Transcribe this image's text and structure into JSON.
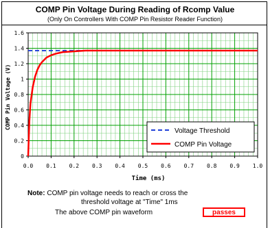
{
  "header": {
    "title": "COMP Pin Voltage During Reading of Rcomp Value",
    "subtitle": "(Only On Controllers With COMP Pin Resistor Reader Function)"
  },
  "chart_data": {
    "type": "line",
    "xlabel": "Time (ms)",
    "ylabel": "COMP Pin Voltage (V)",
    "xlim": [
      0,
      1.0
    ],
    "ylim": [
      0,
      1.6
    ],
    "x_ticks": [
      "0.0",
      "0.1",
      "0.2",
      "0.3",
      "0.4",
      "0.5",
      "0.6",
      "0.7",
      "0.8",
      "0.9",
      "1.0"
    ],
    "y_ticks": [
      "0",
      "0.2",
      "0.4",
      "0.6",
      "0.8",
      "1",
      "1.2",
      "1.4",
      "1.6"
    ],
    "grid": true,
    "legend_position": "bottom-right",
    "series": [
      {
        "name": "Voltage Threshold",
        "color": "#1f3fd8",
        "style": "dashed",
        "x": [
          0.0,
          0.36
        ],
        "y": [
          1.37,
          1.37
        ]
      },
      {
        "name": "COMP Pin Voltage",
        "color": "#ff0000",
        "style": "solid",
        "x": [
          0.0,
          0.005,
          0.01,
          0.02,
          0.03,
          0.04,
          0.05,
          0.06,
          0.08,
          0.1,
          0.12,
          0.15,
          0.2,
          0.25,
          0.3,
          0.35,
          0.4,
          0.5,
          0.6,
          0.7,
          0.8,
          0.9,
          1.0
        ],
        "y": [
          0.0,
          0.45,
          0.68,
          0.9,
          1.03,
          1.12,
          1.18,
          1.22,
          1.28,
          1.31,
          1.33,
          1.35,
          1.36,
          1.37,
          1.37,
          1.37,
          1.37,
          1.37,
          1.37,
          1.37,
          1.37,
          1.37,
          1.37
        ]
      }
    ]
  },
  "note": {
    "label": "Note:",
    "line1": " COMP pin voltage needs to reach or cross the",
    "line2": "threshold voltage at \"Time\"  1ms",
    "line3": "The above COMP pin waveform",
    "result": "passes"
  },
  "colors": {
    "grid_major": "#00a000",
    "grid_minor": "#7fd07f",
    "result_border": "#ff0000"
  }
}
